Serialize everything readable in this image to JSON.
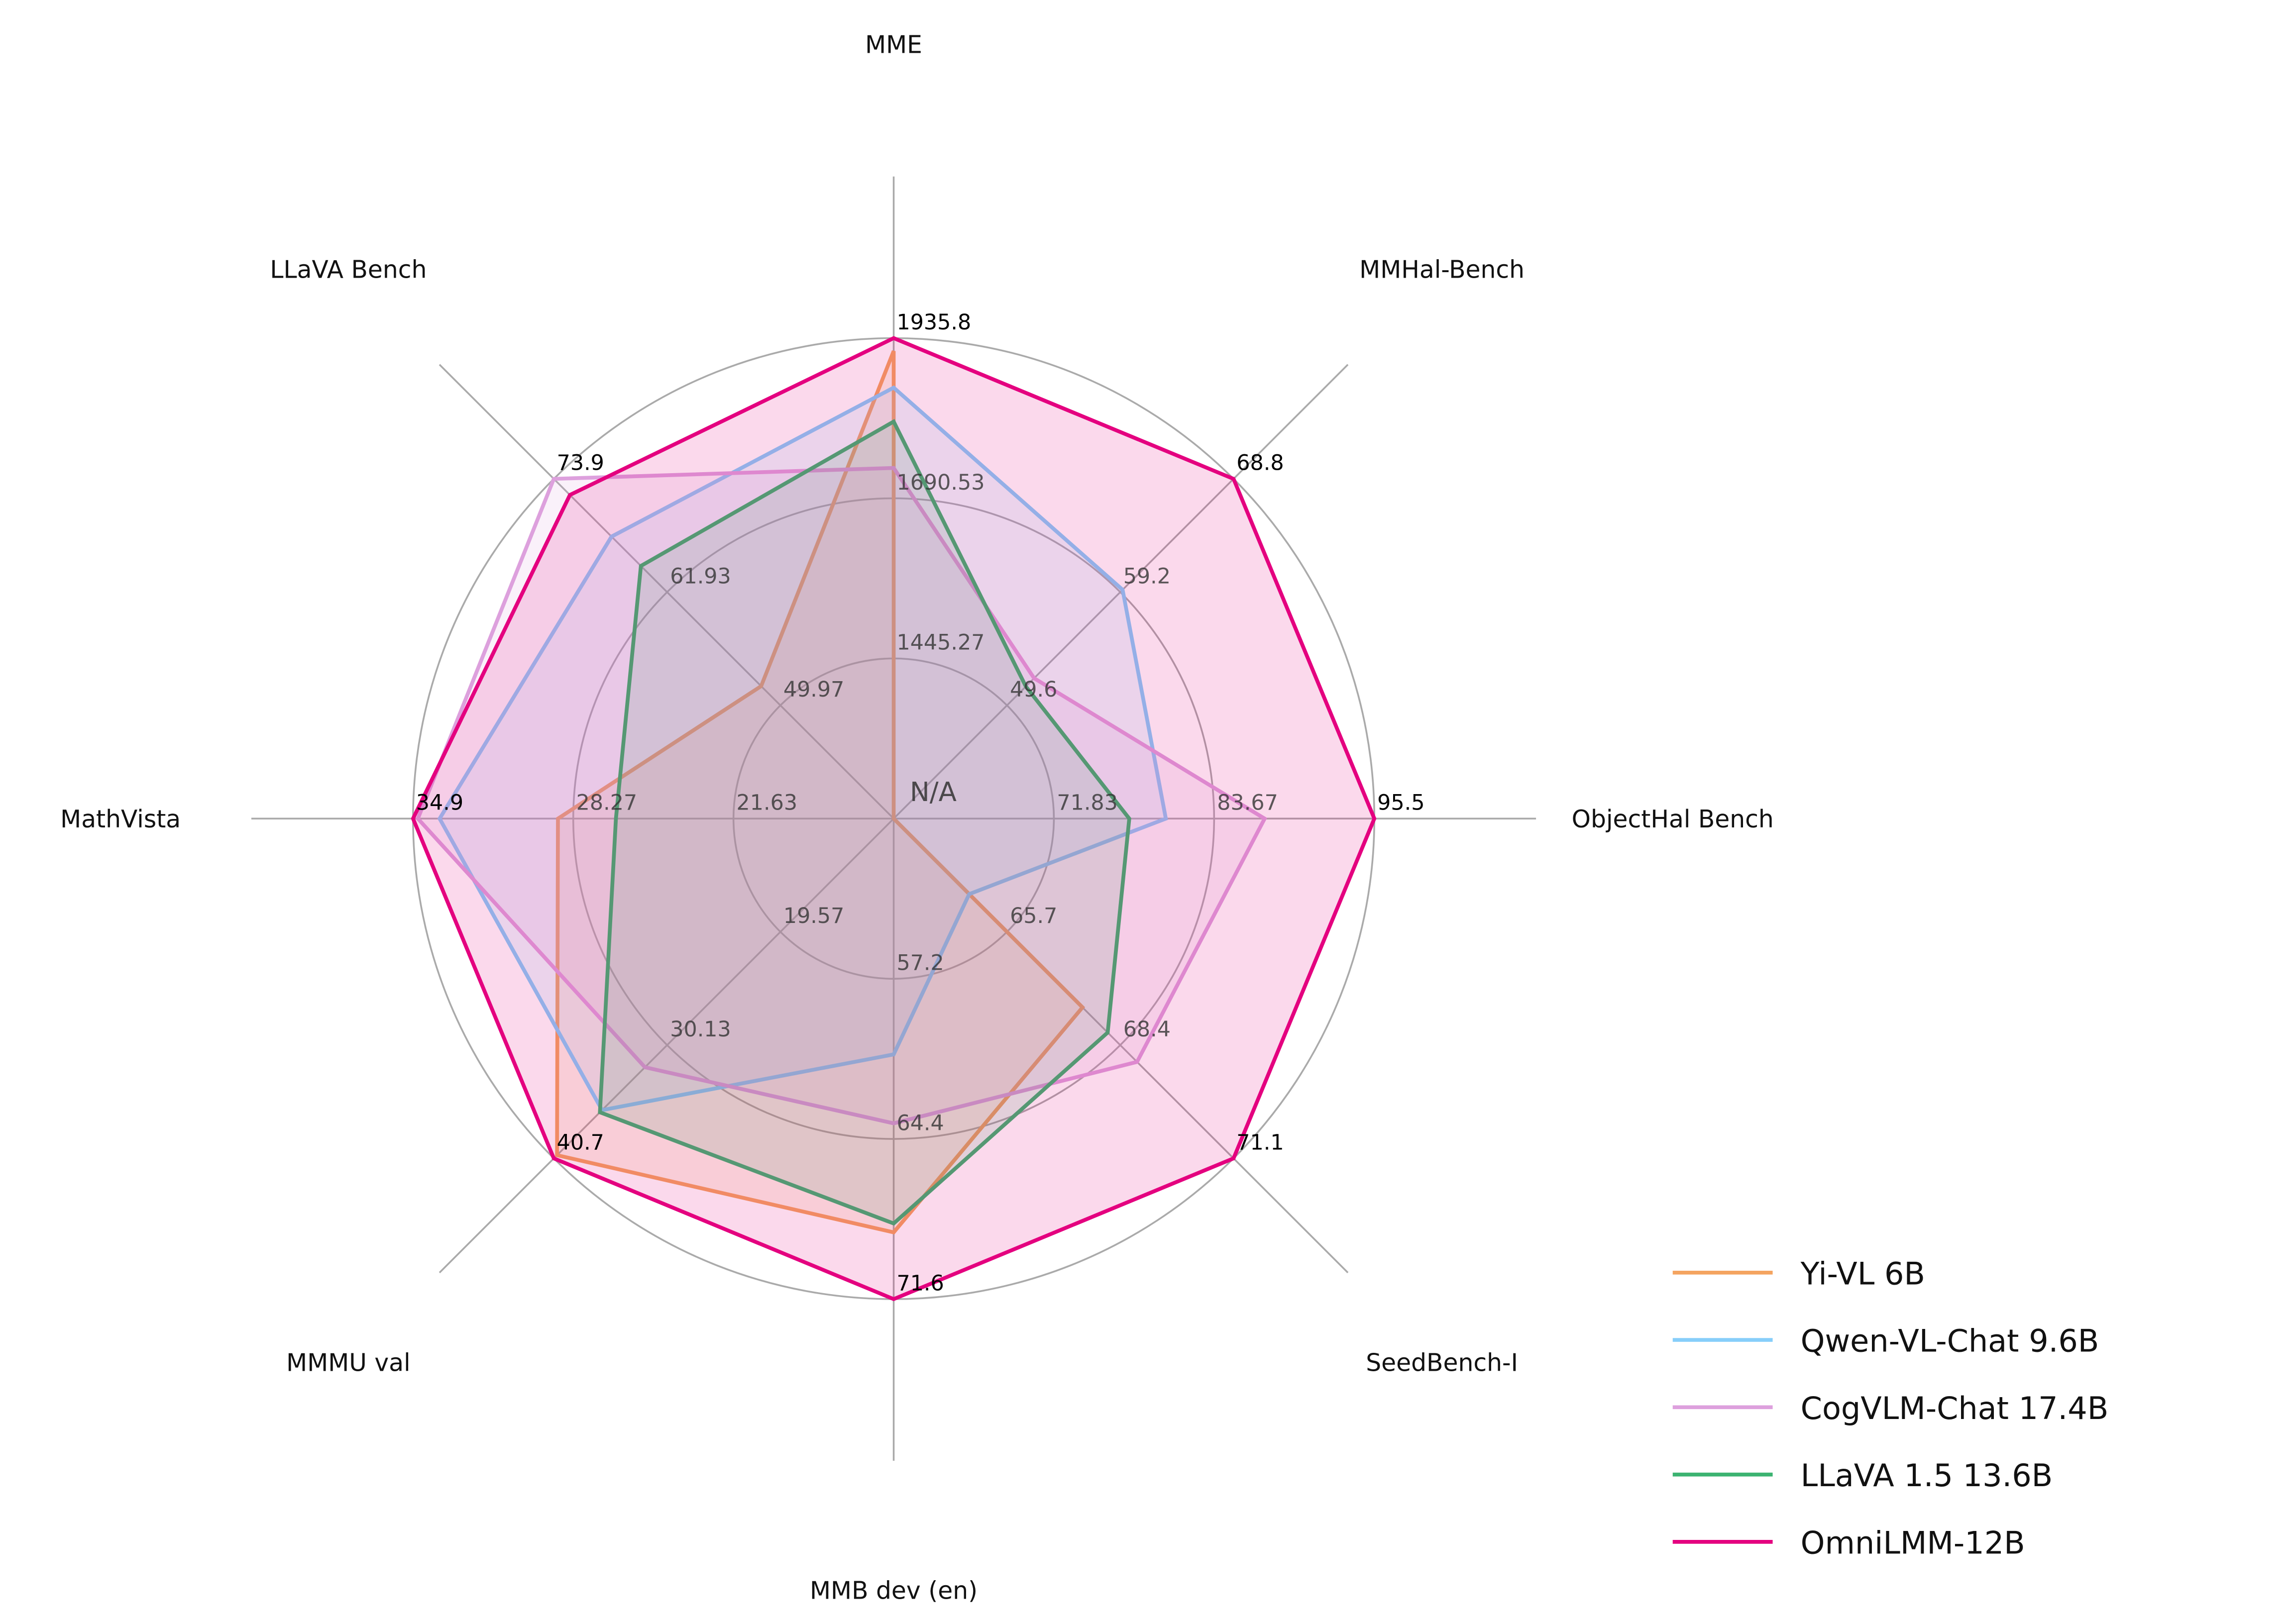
{
  "chart_data": {
    "type": "radar",
    "title": "",
    "center_label": "N/A",
    "axes": [
      {
        "name": "MME",
        "range": [
          1200,
          1935.8
        ],
        "ticks": [
          "1445.27",
          "1690.53",
          "1935.8"
        ]
      },
      {
        "name": "MMHal-Bench",
        "range": [
          40,
          68.8
        ],
        "ticks": [
          "49.6",
          "59.2",
          "68.8"
        ]
      },
      {
        "name": "ObjectHal Bench",
        "range": [
          60,
          95.5
        ],
        "ticks": [
          "71.83",
          "83.67",
          "95.5"
        ]
      },
      {
        "name": "SeedBench-I",
        "range": [
          63,
          71.1
        ],
        "ticks": [
          "65.7",
          "68.4",
          "71.1"
        ]
      },
      {
        "name": "MMB dev (en)",
        "range": [
          50,
          71.6
        ],
        "ticks": [
          "57.2",
          "64.4",
          "71.6"
        ]
      },
      {
        "name": "MMMU val",
        "range": [
          9,
          40.7
        ],
        "ticks": [
          "19.57",
          "30.13",
          "40.7"
        ]
      },
      {
        "name": "MathVista",
        "range": [
          15,
          34.9
        ],
        "ticks": [
          "21.63",
          "28.27",
          "34.9"
        ]
      },
      {
        "name": "LLaVA Bench",
        "range": [
          38,
          73.9
        ],
        "ticks": [
          "49.97",
          "61.93",
          "73.9"
        ]
      }
    ],
    "series": [
      {
        "name": "Yi-VL 6B",
        "color": "#F4A460",
        "values": [
          1916,
          null,
          null,
          67.5,
          68.6,
          40.4,
          28.9,
          52.0
        ]
      },
      {
        "name": "Qwen-VL-Chat 9.6B",
        "color": "#87CEFA",
        "values": [
          1860,
          59.4,
          80.1,
          64.8,
          60.6,
          36.2,
          33.8,
          67.8
        ]
      },
      {
        "name": "CogVLM-Chat 17.4B",
        "color": "#DDA0DD",
        "values": [
          1737,
          51.9,
          87.4,
          68.8,
          63.7,
          32.2,
          34.7,
          73.9
        ]
      },
      {
        "name": "LLaVA 1.5 13.6B",
        "color": "#3CB371",
        "values": [
          1808,
          51.2,
          77.4,
          68.1,
          68.2,
          36.4,
          26.5,
          64.7
        ]
      },
      {
        "name": "OmniLMM-12B",
        "color": "#E4007F",
        "values": [
          1935.8,
          68.8,
          95.5,
          71.1,
          71.6,
          40.7,
          34.9,
          72.2
        ]
      }
    ],
    "grid": true,
    "legend_position": "bottom-right"
  }
}
